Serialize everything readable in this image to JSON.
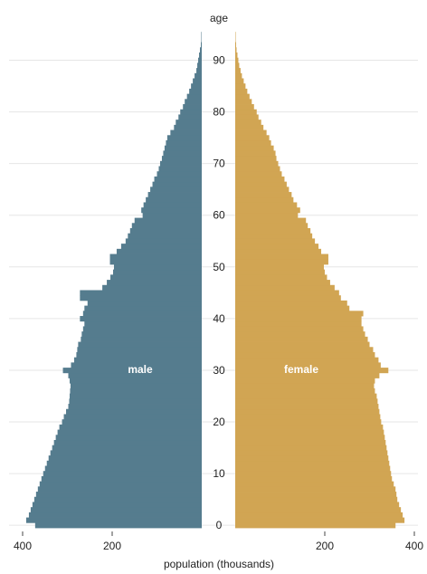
{
  "chart_data": {
    "type": "bar",
    "orientation": "horizontal-pyramid",
    "title": "",
    "xlabel": "population (thousands)",
    "ylabel": "age",
    "xlim": [
      0,
      400
    ],
    "ylim": [
      0,
      95
    ],
    "x_ticks": [
      "400",
      "200",
      "200",
      "400"
    ],
    "y_ticks": [
      "0",
      "10",
      "20",
      "30",
      "40",
      "50",
      "60",
      "70",
      "80",
      "90"
    ],
    "grid": true,
    "legend": "none",
    "colors": {
      "male": "#557c8e",
      "female": "#d1a553"
    },
    "ages": [
      0,
      1,
      2,
      3,
      4,
      5,
      6,
      7,
      8,
      9,
      10,
      11,
      12,
      13,
      14,
      15,
      16,
      17,
      18,
      19,
      20,
      21,
      22,
      23,
      24,
      25,
      26,
      27,
      28,
      29,
      30,
      31,
      32,
      33,
      34,
      35,
      36,
      37,
      38,
      39,
      40,
      41,
      42,
      43,
      44,
      45,
      46,
      47,
      48,
      49,
      50,
      51,
      52,
      53,
      54,
      55,
      56,
      57,
      58,
      59,
      60,
      61,
      62,
      63,
      64,
      65,
      66,
      67,
      68,
      69,
      70,
      71,
      72,
      73,
      74,
      75,
      76,
      77,
      78,
      79,
      80,
      81,
      82,
      83,
      84,
      85,
      86,
      87,
      88,
      89,
      90,
      91,
      92,
      93,
      94,
      95
    ],
    "series": [
      {
        "name": "male",
        "values": [
          372,
          392,
          386,
          382,
          378,
          374,
          370,
          366,
          362,
          358,
          354,
          350,
          346,
          342,
          338,
          334,
          330,
          326,
          322,
          318,
          312,
          308,
          303,
          298,
          296,
          295,
          294,
          293,
          295,
          298,
          310,
          292,
          285,
          280,
          278,
          276,
          270,
          268,
          265,
          262,
          272,
          265,
          262,
          255,
          272,
          272,
          222,
          212,
          204,
          198,
          196,
          205,
          205,
          190,
          180,
          170,
          165,
          160,
          156,
          150,
          132,
          135,
          130,
          125,
          120,
          115,
          110,
          106,
          100,
          96,
          93,
          89,
          86,
          83,
          80,
          77,
          70,
          62,
          58,
          52,
          48,
          42,
          38,
          33,
          28,
          24,
          20,
          16,
          12,
          10,
          8,
          6,
          4,
          2,
          1,
          1
        ]
      },
      {
        "name": "female",
        "values": [
          358,
          378,
          374,
          370,
          366,
          362,
          360,
          358,
          354,
          350,
          348,
          346,
          344,
          342,
          340,
          338,
          336,
          334,
          332,
          330,
          326,
          324,
          322,
          320,
          318,
          316,
          312,
          310,
          312,
          322,
          342,
          325,
          320,
          312,
          308,
          300,
          296,
          290,
          286,
          282,
          282,
          286,
          255,
          250,
          236,
          232,
          222,
          212,
          205,
          200,
          198,
          208,
          208,
          192,
          186,
          178,
          172,
          168,
          162,
          158,
          140,
          145,
          138,
          130,
          126,
          120,
          115,
          110,
          104,
          100,
          96,
          92,
          90,
          86,
          80,
          76,
          70,
          63,
          58,
          52,
          48,
          42,
          37,
          32,
          27,
          23,
          19,
          15,
          12,
          9,
          7,
          5,
          3,
          2,
          1,
          1
        ]
      }
    ],
    "annotations": [
      "male",
      "female"
    ]
  }
}
